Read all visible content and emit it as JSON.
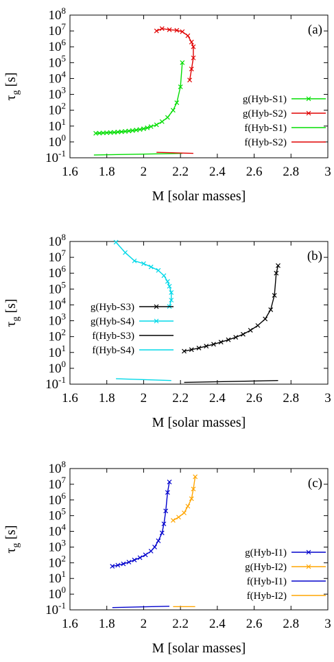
{
  "chart_data": [
    {
      "type": "line",
      "panel_label": "(a)",
      "xlabel": "M [solar masses]",
      "ylabel": "τ_g [s]",
      "xlim": [
        1.6,
        3.0
      ],
      "ylim_exponent": [
        -1,
        8
      ],
      "log_y": true,
      "x_ticks": [
        "1.6",
        "1.8",
        "2",
        "2.2",
        "2.4",
        "2.6",
        "2.8",
        "3"
      ],
      "legend_position": "right",
      "series": [
        {
          "name": "g(Hyb-S1)",
          "color": "#00dd00",
          "markers": true,
          "x": [
            1.74,
            1.76,
            1.78,
            1.8,
            1.82,
            1.84,
            1.86,
            1.88,
            1.9,
            1.92,
            1.94,
            1.96,
            1.98,
            2.0,
            2.02,
            2.04,
            2.07,
            2.1,
            2.13,
            2.16,
            2.18,
            2.2,
            2.21
          ],
          "y": [
            3.5,
            3.6,
            3.7,
            3.8,
            3.9,
            4.0,
            4.2,
            4.4,
            4.6,
            4.9,
            5.2,
            5.6,
            6.1,
            6.8,
            7.8,
            9.3,
            12,
            19,
            35,
            100,
            300,
            3000,
            100000
          ]
        },
        {
          "name": "g(Hyb-S2)",
          "color": "#e00000",
          "markers": true,
          "x": [
            2.07,
            2.1,
            2.14,
            2.18,
            2.21,
            2.24,
            2.26,
            2.27,
            2.27,
            2.26,
            2.25
          ],
          "y": [
            10000000,
            14000000,
            12000000,
            11000000,
            9000000,
            5000000,
            2000000,
            1000000,
            200000,
            40000,
            8000
          ]
        },
        {
          "name": "f(Hyb-S1)",
          "color": "#00dd00",
          "markers": false,
          "x": [
            1.73,
            2.21
          ],
          "y": [
            0.15,
            0.19
          ]
        },
        {
          "name": "f(Hyb-S2)",
          "color": "#e00000",
          "markers": false,
          "x": [
            2.07,
            2.27
          ],
          "y": [
            0.22,
            0.19
          ]
        }
      ]
    },
    {
      "type": "line",
      "panel_label": "(b)",
      "xlabel": "M [solar masses]",
      "ylabel": "τ_g [s]",
      "xlim": [
        1.6,
        3.0
      ],
      "ylim_exponent": [
        -1,
        8
      ],
      "log_y": true,
      "x_ticks": [
        "1.6",
        "1.8",
        "2",
        "2.2",
        "2.4",
        "2.6",
        "2.8",
        "3"
      ],
      "legend_position": "left",
      "series": [
        {
          "name": "g(Hyb-S3)",
          "color": "#000000",
          "markers": true,
          "x": [
            2.22,
            2.26,
            2.3,
            2.34,
            2.38,
            2.42,
            2.46,
            2.5,
            2.54,
            2.58,
            2.62,
            2.66,
            2.69,
            2.71,
            2.72,
            2.73
          ],
          "y": [
            12,
            15,
            19,
            25,
            33,
            45,
            63,
            90,
            140,
            250,
            500,
            1300,
            5000,
            40000,
            1000000,
            3000000
          ]
        },
        {
          "name": "g(Hyb-S4)",
          "color": "#00d8e8",
          "markers": true,
          "x": [
            1.85,
            1.9,
            1.95,
            2.0,
            2.04,
            2.08,
            2.11,
            2.13,
            2.14,
            2.15,
            2.15,
            2.14
          ],
          "y": [
            90000000,
            20000000,
            6000000,
            4000000,
            2500000,
            1500000,
            700000,
            300000,
            150000,
            60000,
            20000,
            8000
          ]
        },
        {
          "name": "f(Hyb-S3)",
          "color": "#000000",
          "markers": false,
          "x": [
            2.22,
            2.73
          ],
          "y": [
            0.13,
            0.17
          ]
        },
        {
          "name": "f(Hyb-S4)",
          "color": "#00d8e8",
          "markers": false,
          "x": [
            1.85,
            2.15
          ],
          "y": [
            0.22,
            0.17
          ]
        }
      ]
    },
    {
      "type": "line",
      "panel_label": "(c)",
      "xlabel": "M [solar masses]",
      "ylabel": "τ_g [s]",
      "xlim": [
        1.6,
        3.0
      ],
      "ylim_exponent": [
        -1,
        8
      ],
      "log_y": true,
      "x_ticks": [
        "1.6",
        "1.8",
        "2",
        "2.2",
        "2.4",
        "2.6",
        "2.8",
        "3"
      ],
      "legend_position": "right",
      "series": [
        {
          "name": "g(Hyb-I1)",
          "color": "#0000cc",
          "markers": true,
          "x": [
            1.83,
            1.86,
            1.89,
            1.92,
            1.95,
            1.98,
            2.01,
            2.04,
            2.06,
            2.08,
            2.1,
            2.11,
            2.12,
            2.13,
            2.14
          ],
          "y": [
            60,
            70,
            85,
            110,
            150,
            210,
            320,
            550,
            1000,
            2500,
            8000,
            30000,
            200000,
            3000000,
            14000000
          ]
        },
        {
          "name": "g(Hyb-I2)",
          "color": "#ffa500",
          "markers": true,
          "x": [
            2.16,
            2.19,
            2.22,
            2.24,
            2.26,
            2.27,
            2.28
          ],
          "y": [
            50000,
            80000,
            150000,
            400000,
            1200000,
            5000000,
            30000000
          ]
        },
        {
          "name": "f(Hyb-I1)",
          "color": "#0000cc",
          "markers": false,
          "x": [
            1.83,
            2.14
          ],
          "y": [
            0.14,
            0.17
          ]
        },
        {
          "name": "f(Hyb-I2)",
          "color": "#ffa500",
          "markers": false,
          "x": [
            2.16,
            2.28
          ],
          "y": [
            0.16,
            0.16
          ]
        }
      ]
    }
  ]
}
